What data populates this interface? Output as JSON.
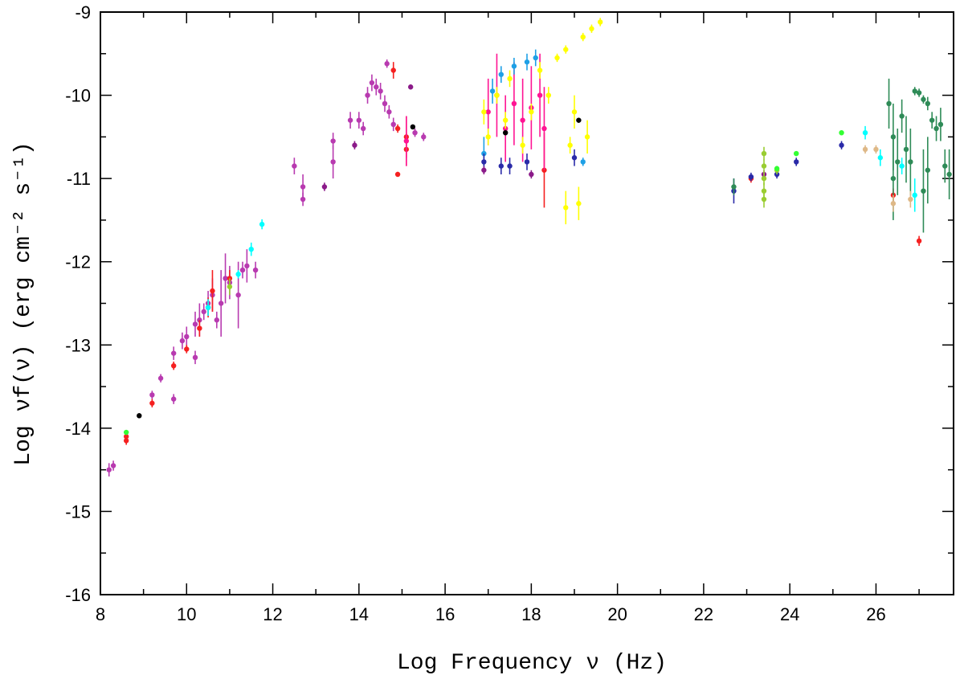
{
  "chart_data": {
    "type": "scatter",
    "title": "",
    "xlabel": "Log Frequency ν (Hz)",
    "ylabel": "Log νf(ν) (erg cm⁻² s⁻¹)",
    "xlim": [
      8,
      27.8
    ],
    "ylim": [
      -16,
      -9
    ],
    "xticks": [
      8,
      10,
      12,
      14,
      16,
      18,
      20,
      22,
      24,
      26
    ],
    "yticks": [
      -16,
      -15,
      -14,
      -13,
      -12,
      -11,
      -10,
      -9
    ],
    "grid": false,
    "legend": "none",
    "series": [
      {
        "color": "#b83ab0",
        "points": [
          [
            8.2,
            -14.5,
            0.08
          ],
          [
            8.3,
            -14.45,
            0.06
          ],
          [
            9.2,
            -13.6,
            0.05
          ],
          [
            9.4,
            -13.4,
            0.05
          ],
          [
            9.7,
            -13.1,
            0.08
          ],
          [
            9.7,
            -13.65,
            0.06
          ],
          [
            9.9,
            -12.95,
            0.1
          ],
          [
            10.0,
            -12.9,
            0.12
          ],
          [
            10.2,
            -12.75,
            0.15
          ],
          [
            10.2,
            -13.15,
            0.08
          ],
          [
            10.3,
            -12.7,
            0.2
          ],
          [
            10.4,
            -12.6,
            0.1
          ],
          [
            10.5,
            -12.5,
            0.15
          ],
          [
            10.6,
            -12.4,
            0.2
          ],
          [
            10.7,
            -12.7,
            0.1
          ],
          [
            10.8,
            -12.5,
            0.4
          ],
          [
            10.9,
            -12.2,
            0.3
          ],
          [
            11.0,
            -12.25,
            0.2
          ],
          [
            11.2,
            -12.4,
            0.4
          ],
          [
            11.3,
            -12.1,
            0.1
          ],
          [
            11.4,
            -12.05,
            0.2
          ],
          [
            11.6,
            -12.1,
            0.1
          ],
          [
            12.5,
            -10.85,
            0.1
          ],
          [
            12.7,
            -11.1,
            0.15
          ],
          [
            12.7,
            -11.25,
            0.08
          ],
          [
            13.4,
            -10.8,
            0.2
          ],
          [
            13.4,
            -10.55,
            0.1
          ],
          [
            13.8,
            -10.3,
            0.1
          ],
          [
            14.0,
            -10.3,
            0.1
          ],
          [
            14.1,
            -10.4,
            0.08
          ],
          [
            14.2,
            -10.0,
            0.1
          ],
          [
            14.3,
            -9.85,
            0.1
          ],
          [
            14.4,
            -9.9,
            0.1
          ],
          [
            14.5,
            -9.95,
            0.1
          ],
          [
            14.6,
            -10.1,
            0.1
          ],
          [
            14.65,
            -9.62,
            0.05
          ],
          [
            14.7,
            -10.2,
            0.08
          ],
          [
            14.8,
            -10.35,
            0.08
          ],
          [
            15.3,
            -10.45,
            0.05
          ],
          [
            15.5,
            -10.5,
            0.05
          ]
        ]
      },
      {
        "color": "#f52020",
        "points": [
          [
            8.6,
            -14.15,
            0.05
          ],
          [
            8.6,
            -14.1,
            0.05
          ],
          [
            9.2,
            -13.7,
            0.05
          ],
          [
            9.7,
            -13.25,
            0.05
          ],
          [
            10.0,
            -13.05,
            0.05
          ],
          [
            10.3,
            -12.8,
            0.1
          ],
          [
            10.5,
            -12.55,
            0.12
          ],
          [
            10.6,
            -12.35,
            0.25
          ],
          [
            11.0,
            -12.2,
            0.1
          ],
          [
            14.8,
            -9.7,
            0.1
          ],
          [
            14.9,
            -10.4,
            0.05
          ],
          [
            14.9,
            -10.95,
            0.03
          ],
          [
            15.1,
            -10.5,
            0.25
          ],
          [
            15.1,
            -10.65,
            0.2
          ],
          [
            18.3,
            -10.9,
            0.45
          ],
          [
            23.1,
            -11.0,
            0.05
          ],
          [
            26.4,
            -11.2,
            0.08
          ],
          [
            27.0,
            -11.75,
            0.06
          ]
        ]
      },
      {
        "color": "#ff1493",
        "points": [
          [
            17.0,
            -10.2,
            0.4
          ],
          [
            17.2,
            -10.0,
            0.5
          ],
          [
            17.4,
            -10.4,
            0.4
          ],
          [
            17.6,
            -10.1,
            0.5
          ],
          [
            17.8,
            -10.3,
            0.5
          ],
          [
            18.0,
            -10.15,
            0.5
          ],
          [
            18.2,
            -10.0,
            0.5
          ],
          [
            18.3,
            -10.4,
            0.5
          ],
          [
            15.1,
            -10.55,
            0.3
          ]
        ]
      },
      {
        "color": "#ffff00",
        "points": [
          [
            16.9,
            -10.2,
            0.15
          ],
          [
            17.0,
            -10.5,
            0.1
          ],
          [
            17.2,
            -10.0,
            0.1
          ],
          [
            17.4,
            -10.3,
            0.1
          ],
          [
            17.5,
            -9.8,
            0.1
          ],
          [
            17.8,
            -10.6,
            0.1
          ],
          [
            18.0,
            -10.2,
            0.1
          ],
          [
            18.2,
            -9.7,
            0.1
          ],
          [
            18.4,
            -10.0,
            0.1
          ],
          [
            18.6,
            -9.55,
            0.05
          ],
          [
            18.8,
            -9.45,
            0.05
          ],
          [
            18.9,
            -10.6,
            0.1
          ],
          [
            19.0,
            -10.2,
            0.2
          ],
          [
            19.2,
            -9.3,
            0.05
          ],
          [
            19.4,
            -9.2,
            0.05
          ],
          [
            19.6,
            -9.12,
            0.05
          ],
          [
            18.8,
            -11.35,
            0.2
          ],
          [
            19.1,
            -11.3,
            0.2
          ],
          [
            19.3,
            -10.5,
            0.2
          ]
        ]
      },
      {
        "color": "#1ea0e6",
        "points": [
          [
            17.1,
            -9.95,
            0.15
          ],
          [
            17.3,
            -9.75,
            0.1
          ],
          [
            17.6,
            -9.65,
            0.1
          ],
          [
            17.9,
            -9.6,
            0.1
          ],
          [
            18.1,
            -9.55,
            0.1
          ],
          [
            16.9,
            -10.7,
            0.2
          ],
          [
            19.2,
            -10.8,
            0.05
          ]
        ]
      },
      {
        "color": "#2a2aa8",
        "points": [
          [
            16.9,
            -10.8,
            0.1
          ],
          [
            17.3,
            -10.85,
            0.1
          ],
          [
            17.5,
            -10.85,
            0.1
          ],
          [
            17.9,
            -10.8,
            0.1
          ],
          [
            19.0,
            -10.75,
            0.1
          ],
          [
            22.7,
            -11.15,
            0.15
          ],
          [
            23.1,
            -10.98,
            0.05
          ],
          [
            23.7,
            -10.95,
            0.05
          ],
          [
            24.15,
            -10.8,
            0.05
          ],
          [
            25.2,
            -10.6,
            0.05
          ]
        ]
      },
      {
        "color": "#00ffff",
        "points": [
          [
            10.5,
            -12.55,
            0.1
          ],
          [
            11.2,
            -12.15,
            0.05
          ],
          [
            11.5,
            -11.85,
            0.08
          ],
          [
            11.75,
            -11.55,
            0.06
          ],
          [
            25.75,
            -10.45,
            0.08
          ],
          [
            26.1,
            -10.75,
            0.1
          ],
          [
            26.6,
            -10.85,
            0.1
          ],
          [
            26.9,
            -11.2,
            0.2
          ]
        ]
      },
      {
        "color": "#8b1a89",
        "points": [
          [
            13.2,
            -11.1,
            0.05
          ],
          [
            13.9,
            -10.6,
            0.05
          ],
          [
            16.9,
            -10.9,
            0.05
          ],
          [
            18.0,
            -10.95,
            0.05
          ],
          [
            15.2,
            -9.9,
            0.03
          ],
          [
            23.4,
            -10.95,
            0.05
          ]
        ]
      },
      {
        "color": "#9acd32",
        "points": [
          [
            23.4,
            -10.7,
            0.08
          ],
          [
            23.4,
            -10.85,
            0.08
          ],
          [
            23.4,
            -11.0,
            0.08
          ],
          [
            23.4,
            -11.15,
            0.1
          ],
          [
            23.4,
            -11.25,
            0.1
          ],
          [
            23.7,
            -10.9,
            0.05
          ],
          [
            11.0,
            -12.3,
            0.1
          ]
        ]
      },
      {
        "color": "#2e8b57",
        "points": [
          [
            26.3,
            -10.1,
            0.3
          ],
          [
            26.4,
            -10.5,
            0.4
          ],
          [
            26.5,
            -10.8,
            0.4
          ],
          [
            26.6,
            -10.25,
            0.2
          ],
          [
            26.7,
            -10.65,
            0.4
          ],
          [
            26.8,
            -10.8,
            0.4
          ],
          [
            26.9,
            -9.95,
            0.05
          ],
          [
            27.0,
            -9.97,
            0.05
          ],
          [
            27.1,
            -10.05,
            0.05
          ],
          [
            27.2,
            -10.1,
            0.08
          ],
          [
            27.3,
            -10.3,
            0.1
          ],
          [
            27.4,
            -10.4,
            0.15
          ],
          [
            27.5,
            -10.35,
            0.2
          ],
          [
            27.6,
            -10.85,
            0.2
          ],
          [
            27.7,
            -10.95,
            0.3
          ],
          [
            27.2,
            -10.9,
            0.4
          ],
          [
            27.1,
            -11.15,
            0.5
          ],
          [
            26.4,
            -11.0,
            0.5
          ],
          [
            22.7,
            -11.1,
            0.1
          ]
        ]
      },
      {
        "color": "#deb887",
        "points": [
          [
            25.75,
            -10.65,
            0.05
          ],
          [
            26.0,
            -10.65,
            0.05
          ],
          [
            26.4,
            -11.3,
            0.1
          ],
          [
            26.8,
            -11.25,
            0.1
          ]
        ]
      },
      {
        "color": "#33ff33",
        "points": [
          [
            25.2,
            -10.45,
            0.03
          ],
          [
            24.15,
            -10.7,
            0.03
          ],
          [
            23.7,
            -10.88,
            0.03
          ],
          [
            8.6,
            -14.05,
            0.03
          ]
        ]
      },
      {
        "color": "#000000",
        "points": [
          [
            8.9,
            -13.85,
            0.03
          ],
          [
            15.25,
            -10.38,
            0.03
          ],
          [
            17.4,
            -10.45,
            0.03
          ],
          [
            19.1,
            -10.3,
            0.03
          ]
        ]
      }
    ]
  }
}
